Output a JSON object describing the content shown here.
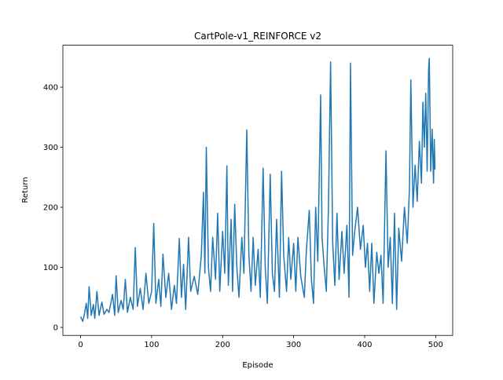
{
  "chart_data": {
    "type": "line",
    "title": "CartPole-v1_REINFORCE v2",
    "x_label": "Episode",
    "y_label": "Return",
    "x": [
      0,
      3,
      5,
      8,
      10,
      12,
      15,
      18,
      20,
      23,
      26,
      30,
      33,
      37,
      40,
      45,
      48,
      50,
      53,
      57,
      60,
      63,
      66,
      70,
      74,
      77,
      80,
      84,
      88,
      92,
      96,
      100,
      103,
      106,
      110,
      113,
      116,
      120,
      124,
      128,
      132,
      135,
      139,
      142,
      145,
      148,
      152,
      155,
      160,
      165,
      170,
      173,
      175,
      177,
      180,
      183,
      186,
      190,
      193,
      196,
      200,
      203,
      206,
      208,
      212,
      214,
      217,
      220,
      223,
      227,
      230,
      234,
      237,
      240,
      243,
      246,
      250,
      253,
      257,
      260,
      263,
      267,
      270,
      273,
      276,
      280,
      283,
      286,
      290,
      293,
      296,
      300,
      303,
      306,
      310,
      315,
      318,
      322,
      325,
      328,
      331,
      334,
      338,
      340,
      343,
      346,
      349,
      352,
      355,
      358,
      361,
      364,
      368,
      371,
      375,
      378,
      380,
      383,
      386,
      390,
      394,
      398,
      401,
      404,
      407,
      410,
      413,
      417,
      420,
      423,
      426,
      430,
      433,
      436,
      439,
      442,
      445,
      448,
      452,
      456,
      460,
      463,
      465,
      468,
      471,
      474,
      477,
      480,
      482,
      484,
      486,
      488,
      490,
      491,
      493,
      495,
      497,
      498,
      499
    ],
    "series": [
      {
        "name": "Return",
        "color": "#1f77b4",
        "values": [
          18,
          10,
          20,
          40,
          15,
          68,
          20,
          38,
          15,
          60,
          20,
          42,
          22,
          30,
          25,
          55,
          20,
          86,
          25,
          45,
          30,
          80,
          25,
          50,
          30,
          133,
          35,
          65,
          30,
          90,
          40,
          60,
          173,
          40,
          80,
          35,
          122,
          50,
          90,
          30,
          70,
          40,
          148,
          50,
          105,
          30,
          150,
          60,
          85,
          55,
          120,
          225,
          90,
          300,
          100,
          60,
          150,
          80,
          190,
          60,
          160,
          90,
          269,
          70,
          180,
          60,
          205,
          100,
          50,
          150,
          90,
          329,
          120,
          60,
          150,
          70,
          130,
          50,
          265,
          100,
          40,
          255,
          90,
          60,
          180,
          50,
          260,
          120,
          60,
          150,
          80,
          140,
          60,
          150,
          85,
          50,
          130,
          195,
          80,
          40,
          200,
          110,
          387,
          150,
          100,
          60,
          200,
          442,
          140,
          70,
          190,
          80,
          160,
          90,
          170,
          50,
          440,
          120,
          160,
          200,
          130,
          170,
          100,
          140,
          60,
          140,
          40,
          125,
          90,
          120,
          40,
          294,
          100,
          150,
          40,
          190,
          30,
          165,
          110,
          200,
          140,
          230,
          412,
          200,
          270,
          210,
          310,
          240,
          375,
          300,
          390,
          260,
          430,
          448,
          260,
          330,
          240,
          313,
          263
        ]
      }
    ],
    "xlim": [
      -24.95,
      523.95
    ],
    "ylim": [
      -13.3,
      469.8
    ],
    "xticks": [
      0,
      100,
      200,
      300,
      400,
      500
    ],
    "yticks": [
      0,
      100,
      200,
      300,
      400
    ]
  }
}
